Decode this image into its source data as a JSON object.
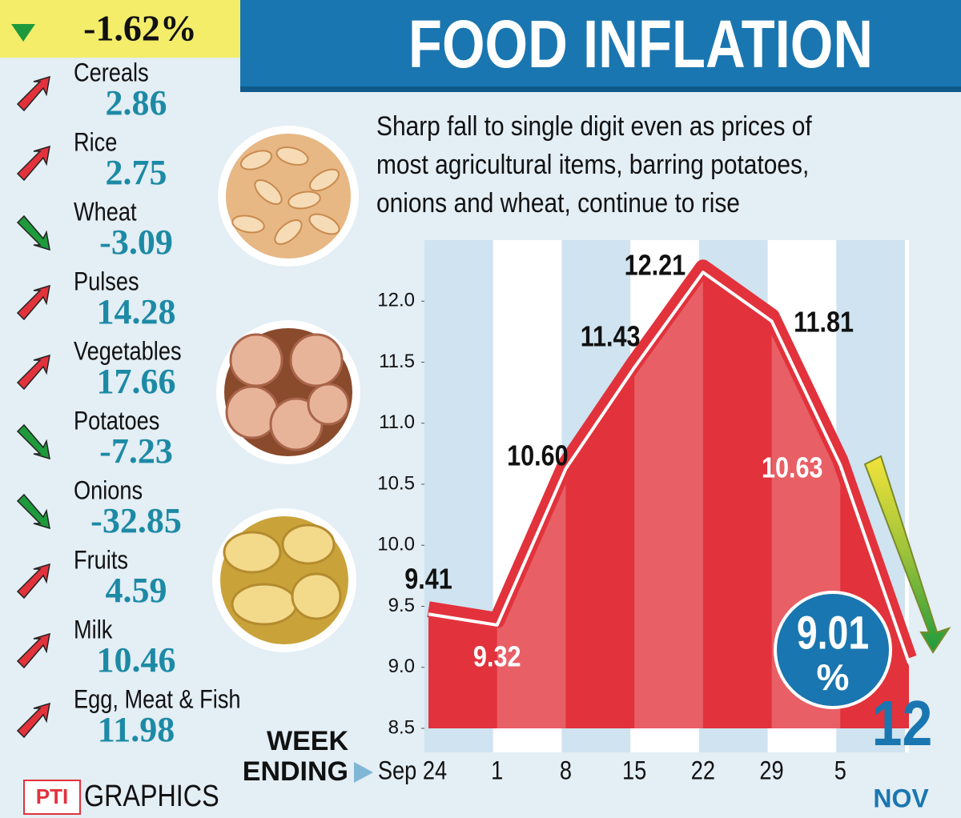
{
  "header": {
    "headline": "-1.62%",
    "title": "FOOD INFLATION"
  },
  "sidebar": [
    {
      "name": "Cereals",
      "value": 2.86
    },
    {
      "name": "Rice",
      "value": 2.75
    },
    {
      "name": "Wheat",
      "value": -3.09
    },
    {
      "name": "Pulses",
      "value": 14.28
    },
    {
      "name": "Vegetables",
      "value": 17.66
    },
    {
      "name": "Potatoes",
      "value": -7.23
    },
    {
      "name": "Onions",
      "value": -32.85
    },
    {
      "name": "Fruits",
      "value": 4.59
    },
    {
      "name": "Milk",
      "value": 10.46
    },
    {
      "name": "Egg, Meat & Fish",
      "value": 11.98
    }
  ],
  "footer": {
    "source": "GRAPHICS"
  },
  "chart_data": {
    "type": "area",
    "subtitle": [
      "Sharp fall to single digit even as prices of",
      "most agricultural items, barring potatoes,",
      "onions and wheat, continue to rise"
    ],
    "x_label": [
      "WEEK",
      "ENDING"
    ],
    "categories": [
      "Sep 24",
      "1",
      "8",
      "15",
      "22",
      "29",
      "5",
      "12"
    ],
    "values": [
      9.41,
      9.32,
      10.6,
      11.43,
      12.21,
      11.81,
      10.63,
      9.01
    ],
    "value_labels": [
      "9.41",
      "9.32",
      "10.60",
      "11.43",
      "12.21",
      "11.81",
      "10.63",
      "9.01"
    ],
    "annotations": {
      "month": "NOV",
      "percent": "%"
    },
    "color": "#e2323c",
    "ylim": [
      8.5,
      12.5
    ],
    "yticks": [
      8.5,
      {
        "value": 9,
        "label": "9.0"
      },
      9.5,
      {
        "value": 10,
        "label": "10.0"
      },
      10.5,
      {
        "value": 11,
        "label": "11.0"
      },
      11.5,
      {
        "value": 12,
        "label": "12.0"
      }
    ]
  }
}
